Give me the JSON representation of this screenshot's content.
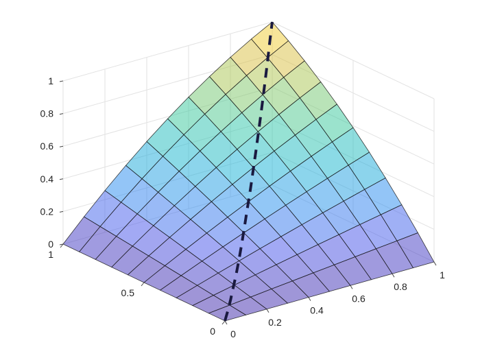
{
  "chart_data": {
    "type": "surface",
    "title": "",
    "xlabel": "",
    "ylabel": "",
    "zlabel": "",
    "grid": true,
    "colormap": "parula",
    "face_alpha": 0.5,
    "mesh_n": 10,
    "x_range": [
      0,
      1
    ],
    "y_range": [
      0,
      1
    ],
    "z_range": [
      0,
      1
    ],
    "x_ticks": [
      0,
      0.2,
      0.4,
      0.6,
      0.8,
      1
    ],
    "x_tick_labels": [
      "0",
      "0.2",
      "0.4",
      "0.6",
      "0.8",
      "1"
    ],
    "y_ticks": [
      0,
      0.5,
      1
    ],
    "y_tick_labels": [
      "0",
      "0.5",
      "1"
    ],
    "z_ticks": [
      0,
      0.2,
      0.4,
      0.6,
      0.8,
      1
    ],
    "z_tick_labels": [
      "0",
      "0.2",
      "0.4",
      "0.6",
      "0.8",
      "1"
    ],
    "surface_corners": {
      "x0y0": 0,
      "x1y0": 0,
      "x0y1": 0,
      "x1y1": 1
    },
    "dashed_curve": {
      "color": "#1a1a40",
      "points": [
        [
          0.0,
          0.0,
          0.0
        ],
        [
          0.06,
          0.06,
          0.01
        ],
        [
          0.12,
          0.12,
          0.03
        ],
        [
          0.18,
          0.18,
          0.06
        ],
        [
          0.24,
          0.24,
          0.09
        ],
        [
          0.3,
          0.3,
          0.13
        ],
        [
          0.36,
          0.36,
          0.18
        ],
        [
          0.42,
          0.42,
          0.24
        ],
        [
          0.48,
          0.48,
          0.3
        ],
        [
          0.54,
          0.54,
          0.36
        ],
        [
          0.6,
          0.6,
          0.43
        ],
        [
          0.66,
          0.66,
          0.5
        ],
        [
          0.72,
          0.72,
          0.58
        ],
        [
          0.78,
          0.78,
          0.66
        ],
        [
          0.84,
          0.84,
          0.75
        ],
        [
          0.9,
          0.9,
          0.84
        ],
        [
          0.96,
          0.96,
          0.94
        ],
        [
          1.0,
          1.0,
          1.0
        ]
      ]
    }
  }
}
